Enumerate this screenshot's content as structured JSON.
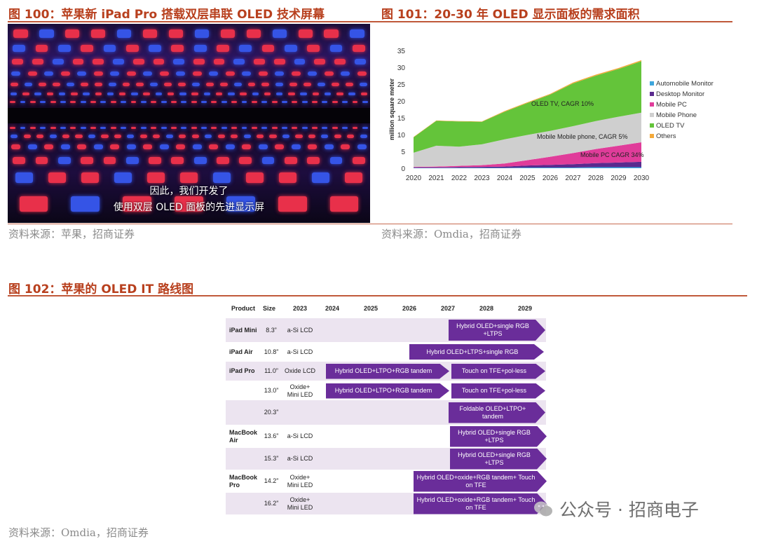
{
  "figures": {
    "fig100": {
      "title": "图 100：苹果新 iPad Pro 搭载双层串联 OLED 技术屏幕",
      "source": "资料来源：苹果，招商证券",
      "subtitle_line1": "因此，我们开发了",
      "subtitle_line2": "使用双层 OLED 面板的先进显示屏"
    },
    "fig101": {
      "title": "图 101：20-30 年 OLED 显示面板的需求面积",
      "source": "资料来源：Omdia，招商证券"
    },
    "fig102": {
      "title": "图 102：苹果的 OLED IT 路线图",
      "source": "资料来源：Omdia，招商证券"
    }
  },
  "chart_data": {
    "type": "area",
    "ylabel": "million square meter",
    "ylim": [
      0,
      35
    ],
    "yticks": [
      0,
      5,
      10,
      15,
      20,
      25,
      30,
      35
    ],
    "x": [
      "2020",
      "2021",
      "2022",
      "2023",
      "2024",
      "2025",
      "2026",
      "2027",
      "2028",
      "2029",
      "2030"
    ],
    "stacked": true,
    "series": [
      {
        "name": "Automobile Monitor",
        "color": "#3ea6dc",
        "values": [
          0.1,
          0.1,
          0.1,
          0.1,
          0.1,
          0.2,
          0.2,
          0.2,
          0.3,
          0.3,
          0.3
        ]
      },
      {
        "name": "Desktop Monitor",
        "color": "#5a2a8e",
        "values": [
          0.1,
          0.1,
          0.2,
          0.3,
          0.4,
          0.6,
          0.8,
          1.0,
          1.2,
          1.4,
          1.6
        ]
      },
      {
        "name": "Mobile PC",
        "color": "#e03c9a",
        "values": [
          0.2,
          0.3,
          0.4,
          0.5,
          0.9,
          1.6,
          2.4,
          3.3,
          4.2,
          5.0,
          5.8
        ]
      },
      {
        "name": "Mobile Phone",
        "color": "#cfcfcf",
        "values": [
          4.2,
          6.2,
          5.7,
          6.2,
          7.2,
          7.5,
          7.7,
          8.0,
          8.3,
          8.6,
          8.8
        ]
      },
      {
        "name": "OLED TV",
        "color": "#64c43a",
        "values": [
          4.6,
          7.4,
          7.5,
          6.7,
          8.2,
          9.5,
          10.8,
          12.7,
          13.5,
          14.2,
          15.3
        ]
      },
      {
        "name": "Others",
        "color": "#f4a93a",
        "values": [
          0.1,
          0.1,
          0.1,
          0.1,
          0.2,
          0.2,
          0.2,
          0.3,
          0.3,
          0.3,
          0.3
        ]
      }
    ],
    "legend_position": "right",
    "annotations": [
      "OLED TV, CAGR 10%",
      "Mobile Mobile phone, CAGR 5%",
      "Mobile PC CAGR 34%"
    ]
  },
  "roadmap": {
    "headers": {
      "product": "Product",
      "size": "Size",
      "years": [
        "2023",
        "2024",
        "2025",
        "2026",
        "2027",
        "2028",
        "2029"
      ]
    },
    "rows": [
      {
        "product": "iPad Mini",
        "size": "8.3”",
        "tech2023": "a-Si LCD",
        "bars": [
          {
            "label": "Hybrid OLED+single RGB +LTPS"
          }
        ]
      },
      {
        "product": "iPad Air",
        "size": "10.8”",
        "tech2023": "a-Si LCD",
        "bars": [
          {
            "label": "Hybrid OLED+LTPS+single RGB"
          }
        ]
      },
      {
        "product": "iPad Pro",
        "size": "11.0”",
        "tech2023": "Oxide LCD",
        "bars": [
          {
            "label": "Hybrid OLED+LTPO+RGB tandem"
          },
          {
            "label": "Touch on TFE+pol-less"
          }
        ]
      },
      {
        "product": "",
        "size": "13.0”",
        "tech2023": "Oxide+ Mini LED",
        "bars": [
          {
            "label": "Hybrid OLED+LTPO+RGB tandem"
          },
          {
            "label": "Touch on TFE+pol-less"
          }
        ]
      },
      {
        "product": "",
        "size": "20.3”",
        "tech2023": "",
        "bars": [
          {
            "label": "Foldable OLED+LTPO+ tandem"
          }
        ]
      },
      {
        "product": "MacBook Air",
        "size": "13.6”",
        "tech2023": "a-Si LCD",
        "bars": [
          {
            "label": "Hybrid OLED+single RGB +LTPS"
          }
        ]
      },
      {
        "product": "",
        "size": "15.3”",
        "tech2023": "a-Si LCD",
        "bars": [
          {
            "label": "Hybrid OLED+single RGB +LTPS"
          }
        ]
      },
      {
        "product": "MacBook Pro",
        "size": "14.2”",
        "tech2023": "Oxide+ Mini LED",
        "bars": [
          {
            "label": "Hybrid OLED+oxide+RGB tandem+ Touch on TFE"
          }
        ]
      },
      {
        "product": "",
        "size": "16.2”",
        "tech2023": "Oxide+ Mini LED",
        "bars": [
          {
            "label": "Hybrid OLED+oxide+RGB tandem+ Touch on TFE"
          }
        ]
      }
    ]
  },
  "watermark": {
    "text": "公众号 · 招商电子"
  }
}
